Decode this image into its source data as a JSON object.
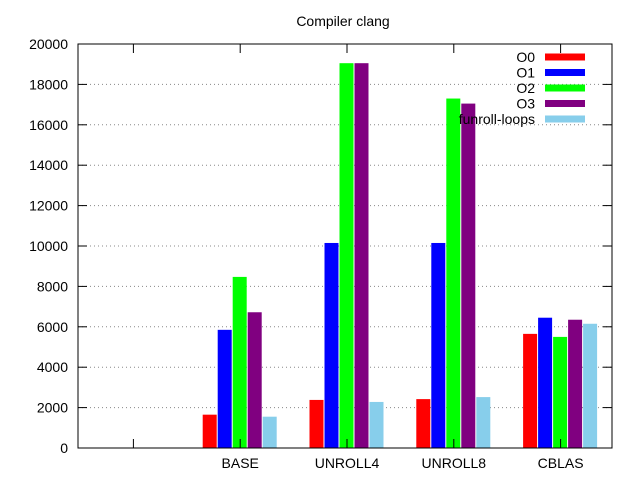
{
  "chart_data": {
    "type": "bar",
    "title": "Compiler clang",
    "xlabel": "",
    "ylabel": "",
    "ylim": [
      0,
      20000
    ],
    "yticks": [
      0,
      2000,
      4000,
      6000,
      8000,
      10000,
      12000,
      14000,
      16000,
      18000,
      20000
    ],
    "grid": true,
    "legend_position": "top-right",
    "categories": [
      "",
      "BASE",
      "UNROLL4",
      "UNROLL8",
      "CBLAS"
    ],
    "series": [
      {
        "name": "O0",
        "color": "#ff0000",
        "values": [
          null,
          1650,
          2380,
          2420,
          5650
        ]
      },
      {
        "name": "O1",
        "color": "#0000ff",
        "values": [
          null,
          5850,
          10150,
          10150,
          6450
        ]
      },
      {
        "name": "O2",
        "color": "#00ff00",
        "values": [
          null,
          8470,
          19050,
          17300,
          5500
        ]
      },
      {
        "name": "O3",
        "color": "#800080",
        "values": [
          null,
          6720,
          19050,
          17050,
          6350
        ]
      },
      {
        "name": "funroll-loops",
        "color": "#87ceeb",
        "values": [
          null,
          1550,
          2280,
          2520,
          6150
        ]
      }
    ]
  }
}
